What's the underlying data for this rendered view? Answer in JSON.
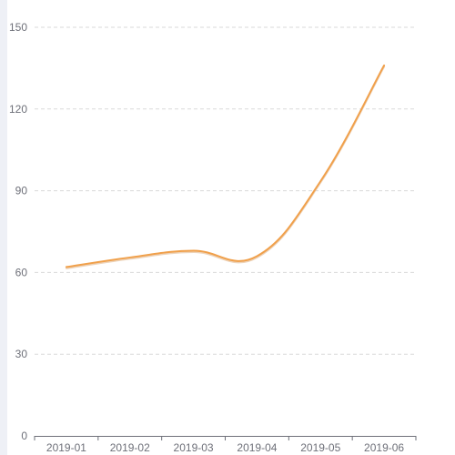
{
  "chart_data": {
    "type": "line",
    "title": "",
    "xlabel": "",
    "ylabel": "",
    "categories": [
      "2019-01",
      "2019-02",
      "2019-03",
      "2019-04",
      "2019-05",
      "2019-06"
    ],
    "ylim": [
      0,
      150
    ],
    "yticks": [
      "0",
      "30",
      "60",
      "90",
      "120",
      "150"
    ],
    "grid": true,
    "smooth": true,
    "series": [
      {
        "values": [
          62,
          65.5,
          68,
          66,
          93.5,
          136
        ],
        "color": "#f0a04b"
      }
    ]
  }
}
